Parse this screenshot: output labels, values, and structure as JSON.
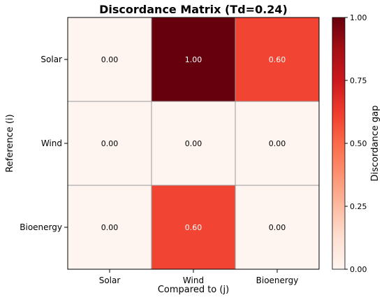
{
  "chart_data": {
    "type": "heatmap",
    "title": "Discordance Matrix (Td=0.24)",
    "xlabel": "Compared to (j)",
    "ylabel": "Reference (i)",
    "x_categories": [
      "Solar",
      "Wind",
      "Bioenergy"
    ],
    "y_categories": [
      "Solar",
      "Wind",
      "Bioenergy"
    ],
    "values": [
      [
        0.0,
        1.0,
        0.6
      ],
      [
        0.0,
        0.0,
        0.0
      ],
      [
        0.0,
        0.6,
        0.0
      ]
    ],
    "cell_labels": [
      [
        "0.00",
        "1.00",
        "0.60"
      ],
      [
        "0.00",
        "0.00",
        "0.00"
      ],
      [
        "0.00",
        "0.60",
        "0.00"
      ]
    ],
    "colorbar": {
      "label": "Discordance gap",
      "range": [
        0.0,
        1.0
      ],
      "ticks": [
        0.0,
        0.25,
        0.5,
        0.75,
        1.0
      ],
      "tick_labels": [
        "0.00",
        "0.25",
        "0.50",
        "0.75",
        "1.00"
      ],
      "colormap": "Reds"
    },
    "grid_color": "#999999"
  }
}
